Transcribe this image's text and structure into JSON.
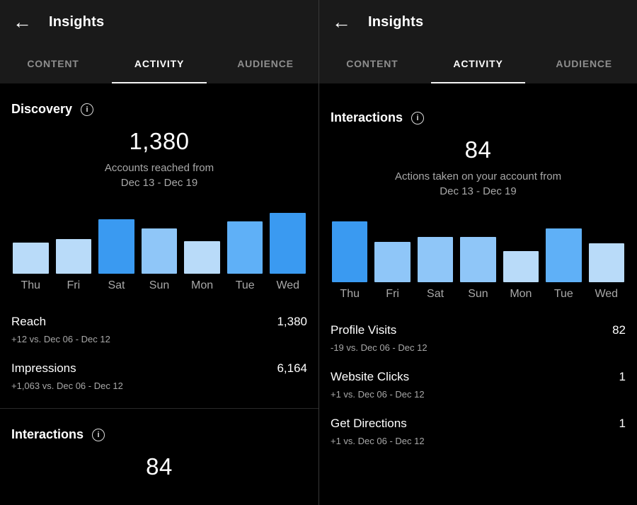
{
  "colors": {
    "background": "#000000",
    "header_bg": "#1a1a1a",
    "accent_blue": "#3a9af1",
    "bar_pale": "#b9dbf9",
    "bar_medium_light": "#8fc6f8",
    "bar_medium": "#5fb0f7",
    "text_secondary": "#a8a8a8"
  },
  "icons": {
    "back": "←",
    "info": "i"
  },
  "panels": [
    {
      "title": "Insights",
      "tabs": [
        {
          "label": "CONTENT"
        },
        {
          "label": "ACTIVITY"
        },
        {
          "label": "AUDIENCE"
        }
      ],
      "active_tab": "ACTIVITY",
      "section": {
        "heading": "Discovery",
        "big_number": "1,380",
        "subtitle_line1": "Accounts reached from",
        "subtitle_line2": "Dec 13 - Dec 19"
      },
      "rows": [
        {
          "label": "Reach",
          "value": "1,380",
          "comparison": "+12 vs. Dec 06 - Dec 12"
        },
        {
          "label": "Impressions",
          "value": "6,164",
          "comparison": "+1,063 vs. Dec 06 - Dec 12"
        }
      ],
      "next_section": {
        "heading": "Interactions",
        "big_number": "84"
      }
    },
    {
      "title": "Insights",
      "tabs": [
        {
          "label": "CONTENT"
        },
        {
          "label": "ACTIVITY"
        },
        {
          "label": "AUDIENCE"
        }
      ],
      "active_tab": "ACTIVITY",
      "section": {
        "heading": "Interactions",
        "big_number": "84",
        "subtitle_line1": "Actions taken on your account from",
        "subtitle_line2": "Dec 13 - Dec 19"
      },
      "rows": [
        {
          "label": "Profile Visits",
          "value": "82",
          "comparison": "-19 vs. Dec 06 - Dec 12"
        },
        {
          "label": "Website Clicks",
          "value": "1",
          "comparison": "+1 vs. Dec 06 - Dec 12"
        },
        {
          "label": "Get Directions",
          "value": "1",
          "comparison": "+1 vs. Dec 06 - Dec 12"
        }
      ]
    }
  ],
  "chart_data": [
    {
      "type": "bar",
      "title": "Accounts reached per day (Dec 13 - Dec 19)",
      "categories": [
        "Thu",
        "Fri",
        "Sat",
        "Sun",
        "Mon",
        "Tue",
        "Wed"
      ],
      "values": [
        44,
        49,
        77,
        64,
        46,
        74,
        86
      ],
      "values_note": "relative bar heights; no y-axis labels shown; weekly total reach = 1,380",
      "colors": [
        "#b9dbf9",
        "#b9dbf9",
        "#3a9af1",
        "#8fc6f8",
        "#b9dbf9",
        "#5fb0f7",
        "#3a9af1"
      ],
      "xlabel": "",
      "ylabel": "",
      "legend": false,
      "grid": false
    },
    {
      "type": "bar",
      "title": "Actions taken per day (Dec 13 - Dec 19)",
      "categories": [
        "Thu",
        "Fri",
        "Sat",
        "Sun",
        "Mon",
        "Tue",
        "Wed"
      ],
      "values": [
        86,
        57,
        64,
        64,
        44,
        76,
        55
      ],
      "values_note": "relative bar heights; no y-axis labels shown; weekly total interactions = 84",
      "colors": [
        "#3a9af1",
        "#8fc6f8",
        "#8fc6f8",
        "#8fc6f8",
        "#b9dbf9",
        "#5fb0f7",
        "#b9dbf9"
      ],
      "xlabel": "",
      "ylabel": "",
      "legend": false,
      "grid": false
    }
  ]
}
